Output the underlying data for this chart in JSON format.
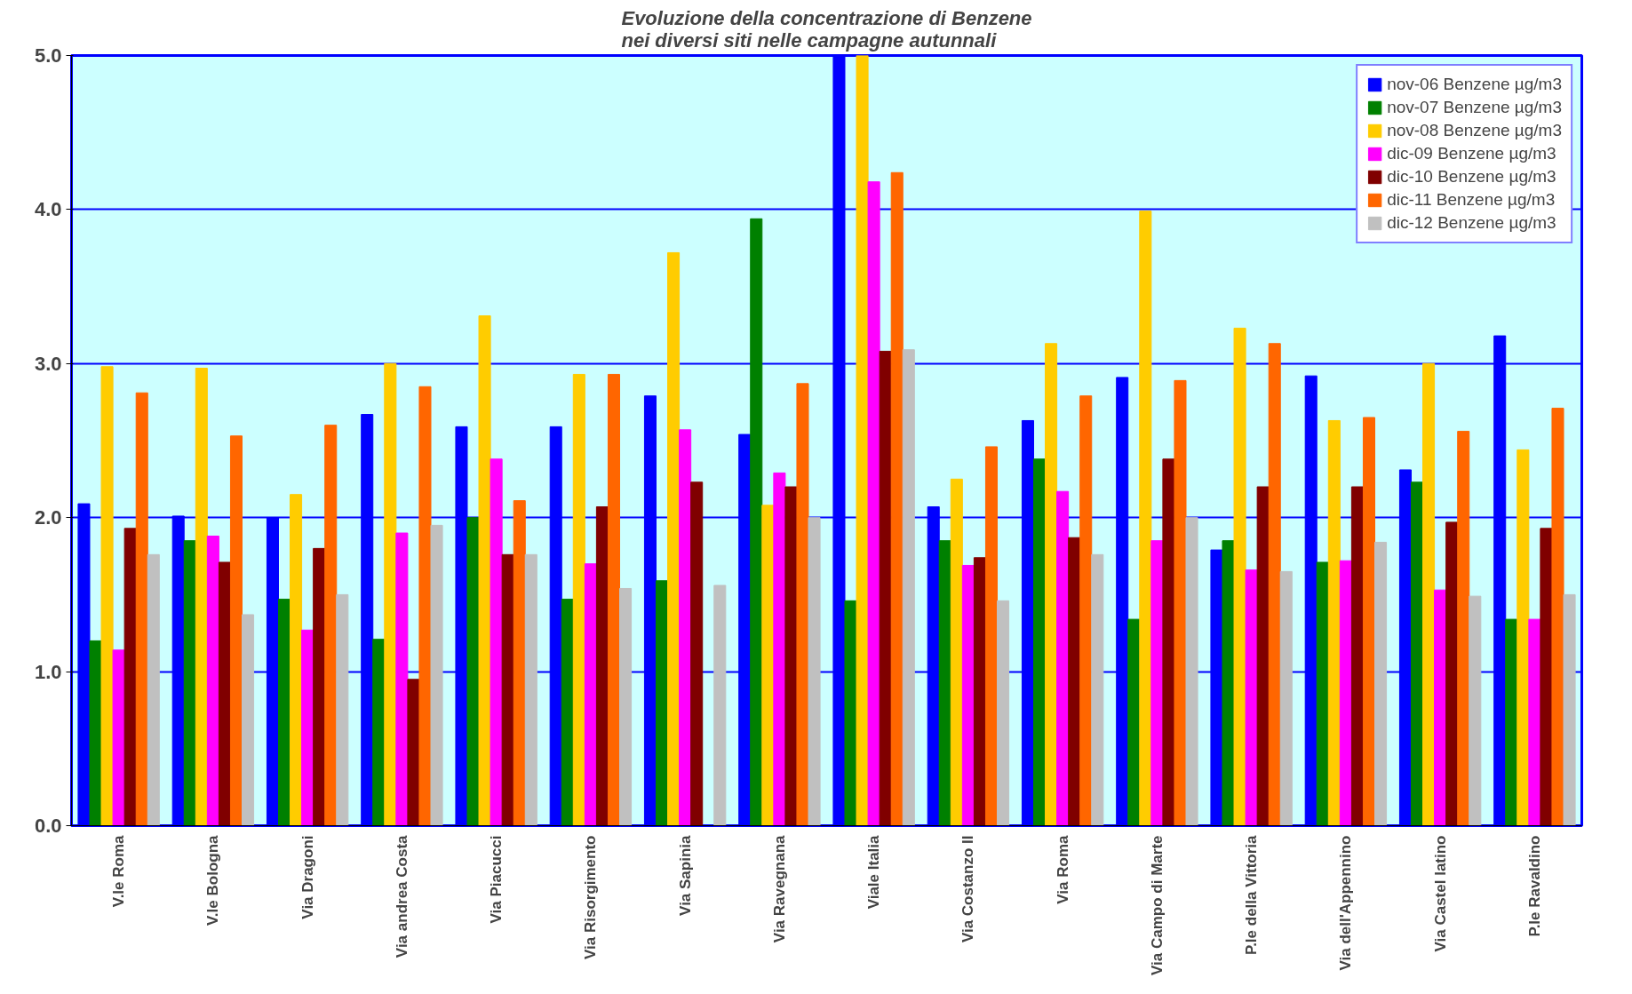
{
  "chart_data": {
    "type": "bar",
    "title": "Evoluzione della concentrazione di Benzene\nnei diversi siti nelle campagne autunnali",
    "categories": [
      "V.le Roma",
      "V.le Bologna",
      "Via Dragoni",
      "Via andrea Costa",
      "Via Piacucci",
      "Via Risorgimento",
      "Via Sapinia",
      "Via Ravegnana",
      "Viale Italia",
      "Via Costanzo II",
      "Via Roma",
      "Via Campo di Marte",
      "P.le della Vittoria",
      "Via dell'Appennino",
      "Via Castel latino",
      "P.le Ravaldino"
    ],
    "series": [
      {
        "name": "nov-06 Benzene µg/m3",
        "color": "#0000ff",
        "values": [
          2.09,
          2.01,
          2.0,
          2.67,
          2.59,
          2.59,
          2.79,
          2.54,
          5.0,
          2.07,
          2.63,
          2.91,
          1.79,
          2.92,
          2.31,
          3.18
        ]
      },
      {
        "name": "nov-07 Benzene µg/m3",
        "color": "#008000",
        "values": [
          1.2,
          1.85,
          1.47,
          1.21,
          2.0,
          1.47,
          1.59,
          3.94,
          1.46,
          1.85,
          2.38,
          1.34,
          1.85,
          1.71,
          2.23,
          1.34
        ]
      },
      {
        "name": "nov-08 Benzene µg/m3",
        "color": "#ffcc00",
        "values": [
          2.98,
          2.97,
          2.15,
          3.0,
          3.31,
          2.93,
          3.72,
          2.08,
          5.0,
          2.25,
          3.13,
          3.99,
          3.23,
          2.63,
          3.0,
          2.44
        ]
      },
      {
        "name": "dic-09 Benzene µg/m3",
        "color": "#ff00ff",
        "values": [
          1.14,
          1.88,
          1.27,
          1.9,
          2.38,
          1.7,
          2.57,
          2.29,
          4.18,
          1.69,
          2.17,
          1.85,
          1.66,
          1.72,
          1.53,
          1.34
        ]
      },
      {
        "name": "dic-10 Benzene µg/m3",
        "color": "#800000",
        "values": [
          1.93,
          1.71,
          1.8,
          0.95,
          1.76,
          2.07,
          2.23,
          2.2,
          3.08,
          1.74,
          1.87,
          2.38,
          2.2,
          2.2,
          1.97,
          1.93
        ]
      },
      {
        "name": "dic-11 Benzene µg/m3",
        "color": "#ff6600",
        "values": [
          2.81,
          2.53,
          2.6,
          2.85,
          2.11,
          2.93,
          null,
          2.87,
          4.24,
          2.46,
          2.79,
          2.89,
          3.13,
          2.65,
          2.56,
          2.71
        ]
      },
      {
        "name": "dic-12 Benzene µg/m3",
        "color": "#c0c0c0",
        "values": [
          1.76,
          1.37,
          1.5,
          1.95,
          1.76,
          1.54,
          1.56,
          2.0,
          3.09,
          1.46,
          1.76,
          2.0,
          1.65,
          1.84,
          1.49,
          1.5
        ]
      }
    ],
    "ylim": [
      0,
      5
    ],
    "yticks": [
      {
        "value": 0,
        "label": "0.0"
      },
      {
        "value": 1,
        "label": "1.0"
      },
      {
        "value": 2,
        "label": "2.0"
      },
      {
        "value": 3,
        "label": "3.0"
      },
      {
        "value": 4,
        "label": "4.0"
      },
      {
        "value": 5,
        "label": "5.0"
      }
    ],
    "grid": "y",
    "legend": "top right"
  }
}
